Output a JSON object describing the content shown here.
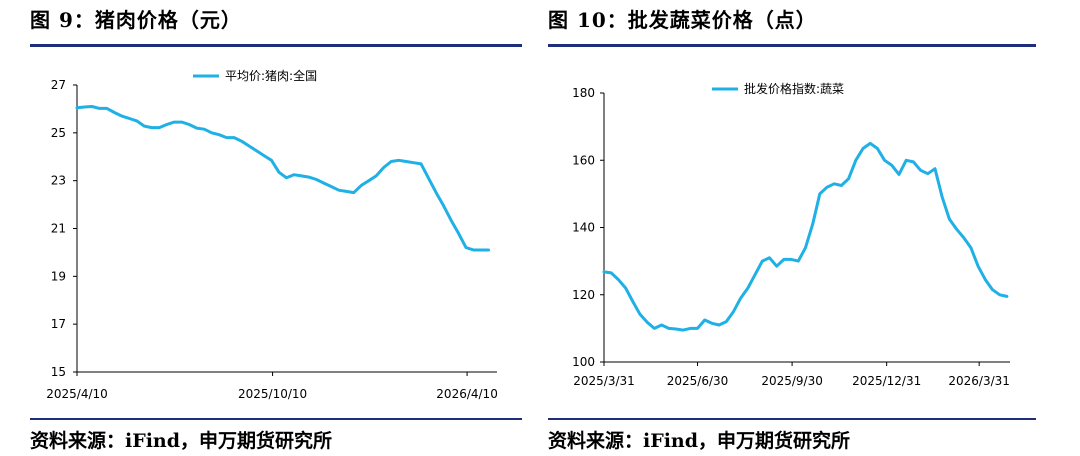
{
  "left": {
    "title": "图 9：猪肉价格（元）",
    "source": "资料来源：iFind，申万期货研究所",
    "legend_color": "#1fb0e6"
  },
  "right": {
    "title": "图 10：批发蔬菜价格（点）",
    "source": "资料来源：iFind，申万期货研究所",
    "legend_color": "#1fb0e6"
  },
  "chart_data": [
    {
      "type": "line",
      "title": "",
      "xlabel": "",
      "ylabel": "",
      "x_ticks": [
        "2025/4/10",
        "2025/10/10",
        "2026/4/10"
      ],
      "y_ticks": [
        "15",
        "17",
        "19",
        "21",
        "23",
        "25",
        "27"
      ],
      "ylim": [
        15,
        27
      ],
      "xlim": [
        "2025/4/10",
        "2026/5/8"
      ],
      "grid": false,
      "legend_position": "top-center",
      "series": [
        {
          "name": "平均价:猪肉:全国",
          "color": "#1fb0e6",
          "x": [
            "2025-04-10",
            "2025-04-17",
            "2025-04-24",
            "2025-05-01",
            "2025-05-08",
            "2025-05-15",
            "2025-05-22",
            "2025-05-29",
            "2025-06-05",
            "2025-06-12",
            "2025-06-19",
            "2025-06-26",
            "2025-07-03",
            "2025-07-10",
            "2025-07-17",
            "2025-07-24",
            "2025-07-31",
            "2025-08-07",
            "2025-08-14",
            "2025-08-21",
            "2025-08-28",
            "2025-09-04",
            "2025-09-11",
            "2025-09-18",
            "2025-09-25",
            "2025-10-02",
            "2025-10-09",
            "2025-10-16",
            "2025-10-23",
            "2025-10-30",
            "2025-11-06",
            "2025-11-13",
            "2025-11-20",
            "2025-11-27",
            "2025-12-04",
            "2025-12-11",
            "2025-12-18",
            "2025-12-25",
            "2026-01-01",
            "2026-01-08",
            "2026-01-15",
            "2026-01-22",
            "2026-01-29",
            "2026-02-05",
            "2026-02-12",
            "2026-02-19",
            "2026-02-26",
            "2026-03-05",
            "2026-03-12",
            "2026-03-19",
            "2026-03-26",
            "2026-04-02",
            "2026-04-09",
            "2026-04-16",
            "2026-04-23",
            "2026-04-30"
          ],
          "values": [
            26.05,
            26.08,
            26.1,
            26.02,
            26.02,
            25.85,
            25.7,
            25.6,
            25.5,
            25.28,
            25.22,
            25.22,
            25.35,
            25.45,
            25.45,
            25.35,
            25.2,
            25.15,
            25.0,
            24.92,
            24.8,
            24.8,
            24.65,
            24.45,
            24.25,
            24.05,
            23.85,
            23.35,
            23.12,
            23.25,
            23.2,
            23.15,
            23.05,
            22.9,
            22.75,
            22.6,
            22.55,
            22.5,
            22.8,
            23.0,
            23.2,
            23.55,
            23.8,
            23.85,
            23.8,
            23.75,
            23.7,
            23.1,
            22.5,
            21.95,
            21.35,
            20.8,
            20.2,
            20.1,
            20.1,
            20.1
          ]
        }
      ]
    },
    {
      "type": "line",
      "title": "",
      "xlabel": "",
      "ylabel": "",
      "x_ticks": [
        "2025/3/31",
        "2025/6/30",
        "2025/9/30",
        "2025/12/31",
        "2026/3/31"
      ],
      "y_ticks": [
        "100",
        "120",
        "140",
        "160",
        "180"
      ],
      "ylim": [
        100,
        180
      ],
      "xlim": [
        "2025/3/31",
        "2026/4/30"
      ],
      "grid": false,
      "legend_position": "top-center",
      "series": [
        {
          "name": "批发价格指数:蔬菜",
          "color": "#1fb0e6",
          "x": [
            "2025-03-31",
            "2025-04-07",
            "2025-04-14",
            "2025-04-21",
            "2025-04-28",
            "2025-05-05",
            "2025-05-12",
            "2025-05-19",
            "2025-05-26",
            "2025-06-02",
            "2025-06-09",
            "2025-06-16",
            "2025-06-23",
            "2025-06-30",
            "2025-07-07",
            "2025-07-14",
            "2025-07-21",
            "2025-07-28",
            "2025-08-04",
            "2025-08-11",
            "2025-08-18",
            "2025-08-25",
            "2025-09-01",
            "2025-09-08",
            "2025-09-15",
            "2025-09-22",
            "2025-09-29",
            "2025-10-06",
            "2025-10-13",
            "2025-10-20",
            "2025-10-27",
            "2025-11-03",
            "2025-11-10",
            "2025-11-17",
            "2025-11-24",
            "2025-12-01",
            "2025-12-08",
            "2025-12-15",
            "2025-12-22",
            "2025-12-29",
            "2026-01-05",
            "2026-01-12",
            "2026-01-19",
            "2026-01-26",
            "2026-02-02",
            "2026-02-09",
            "2026-02-16",
            "2026-02-23",
            "2026-03-02",
            "2026-03-09",
            "2026-03-16",
            "2026-03-23",
            "2026-03-30",
            "2026-04-06",
            "2026-04-13",
            "2026-04-20",
            "2026-04-27"
          ],
          "values": [
            126.8,
            126.5,
            124.5,
            122,
            118,
            114.2,
            111.8,
            110,
            111,
            110,
            109.8,
            109.5,
            110,
            110,
            112.5,
            111.5,
            111,
            112,
            115,
            119,
            122,
            126,
            130,
            131,
            128.5,
            130.5,
            130.5,
            130,
            134,
            141,
            150,
            152,
            153,
            152.5,
            154.5,
            160,
            163.5,
            165,
            163.5,
            160,
            158.5,
            155.8,
            160,
            159.5,
            157,
            156,
            157.5,
            149,
            142.5,
            139.5,
            137,
            134,
            128.5,
            124.5,
            121.5,
            120,
            119.5
          ]
        }
      ]
    }
  ]
}
